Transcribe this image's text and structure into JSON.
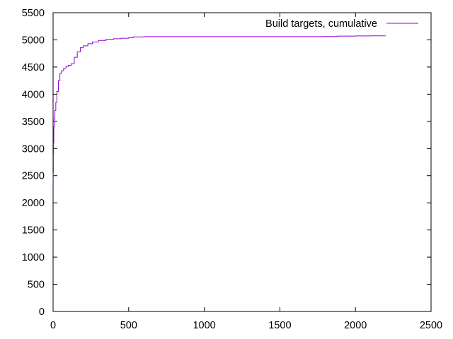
{
  "chart_data": {
    "type": "line",
    "title": "",
    "xlabel": "",
    "ylabel": "",
    "xlim": [
      0,
      2500
    ],
    "ylim": [
      0,
      5500
    ],
    "x_ticks": [
      0,
      500,
      1000,
      1500,
      2000,
      2500
    ],
    "y_ticks": [
      0,
      500,
      1000,
      1500,
      2000,
      2500,
      3000,
      3500,
      4000,
      4500,
      5000,
      5500
    ],
    "grid": false,
    "legend_position": "top-right",
    "series": [
      {
        "name": "Build targets, cumulative",
        "color": "#9400d3",
        "x": [
          0,
          1,
          2,
          3,
          5,
          8,
          12,
          18,
          25,
          35,
          45,
          55,
          70,
          85,
          100,
          120,
          140,
          160,
          180,
          200,
          230,
          260,
          300,
          350,
          400,
          450,
          500,
          530,
          600,
          800,
          1000,
          1200,
          1500,
          1800,
          1880,
          2000,
          2100,
          2200
        ],
        "y": [
          2330,
          2550,
          2900,
          3100,
          3400,
          3550,
          3700,
          3850,
          4050,
          4250,
          4380,
          4430,
          4480,
          4510,
          4530,
          4560,
          4680,
          4780,
          4860,
          4890,
          4930,
          4960,
          4990,
          5010,
          5020,
          5030,
          5040,
          5055,
          5060,
          5060,
          5060,
          5060,
          5060,
          5062,
          5070,
          5072,
          5075,
          5075
        ]
      }
    ]
  }
}
